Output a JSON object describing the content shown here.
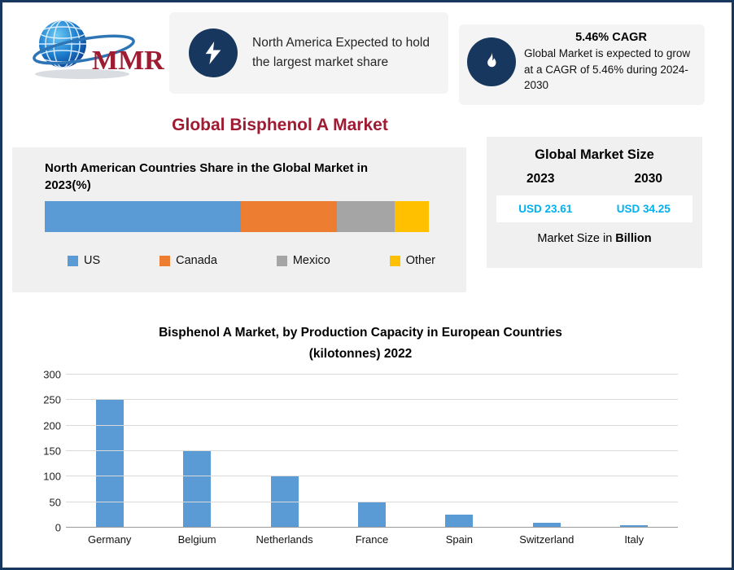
{
  "page_title": "Global Bisphenol A Market",
  "logo": {
    "text": "MMR"
  },
  "cards": {
    "north_america": {
      "icon": "lightning-icon",
      "text": "North America Expected to hold the largest market share"
    },
    "cagr": {
      "icon": "flame-icon",
      "title": "5.46% CAGR",
      "text": "Global Market is expected to grow at a CAGR of 5.46% during 2024-2030"
    }
  },
  "market_size_panel": {
    "title": "Global Market Size",
    "year_left": "2023",
    "year_right": "2030",
    "value_left": "USD 23.61",
    "value_right": "USD 34.25",
    "footnote_prefix": "Market Size in ",
    "footnote_bold": "Billion",
    "value_color": "#00B0F0"
  },
  "chart_data": [
    {
      "type": "bar",
      "subtype": "horizontal-stacked",
      "title": "North American Countries Share in the Global Market in 2023(%)",
      "title_lines": [
        "North American Countries Share in the Global Market in",
        "2023(%)"
      ],
      "unit": "%",
      "legend_position": "bottom",
      "series": [
        {
          "name": "US",
          "value": 51,
          "color": "#5B9BD5"
        },
        {
          "name": "Canada",
          "value": 25,
          "color": "#ED7D31"
        },
        {
          "name": "Mexico",
          "value": 15,
          "color": "#A5A5A5"
        },
        {
          "name": "Other",
          "value": 9,
          "color": "#FFC000"
        }
      ]
    },
    {
      "type": "bar",
      "title": "Bisphenol A Market, by Production Capacity in European Countries (kilotonnes) 2022",
      "title_lines": [
        "Bisphenol A Market, by Production Capacity in European Countries",
        "(kilotonnes) 2022"
      ],
      "categories": [
        "Germany",
        "Belgium",
        "Netherlands",
        "France",
        "Spain",
        "Switzerland",
        "Italy"
      ],
      "values": [
        250,
        150,
        100,
        50,
        25,
        10,
        5
      ],
      "ylim": [
        0,
        300
      ],
      "yticks": [
        0,
        50,
        100,
        150,
        200,
        250,
        300
      ],
      "bar_color": "#5B9BD5",
      "grid": true,
      "xlabel": "",
      "ylabel": ""
    }
  ]
}
